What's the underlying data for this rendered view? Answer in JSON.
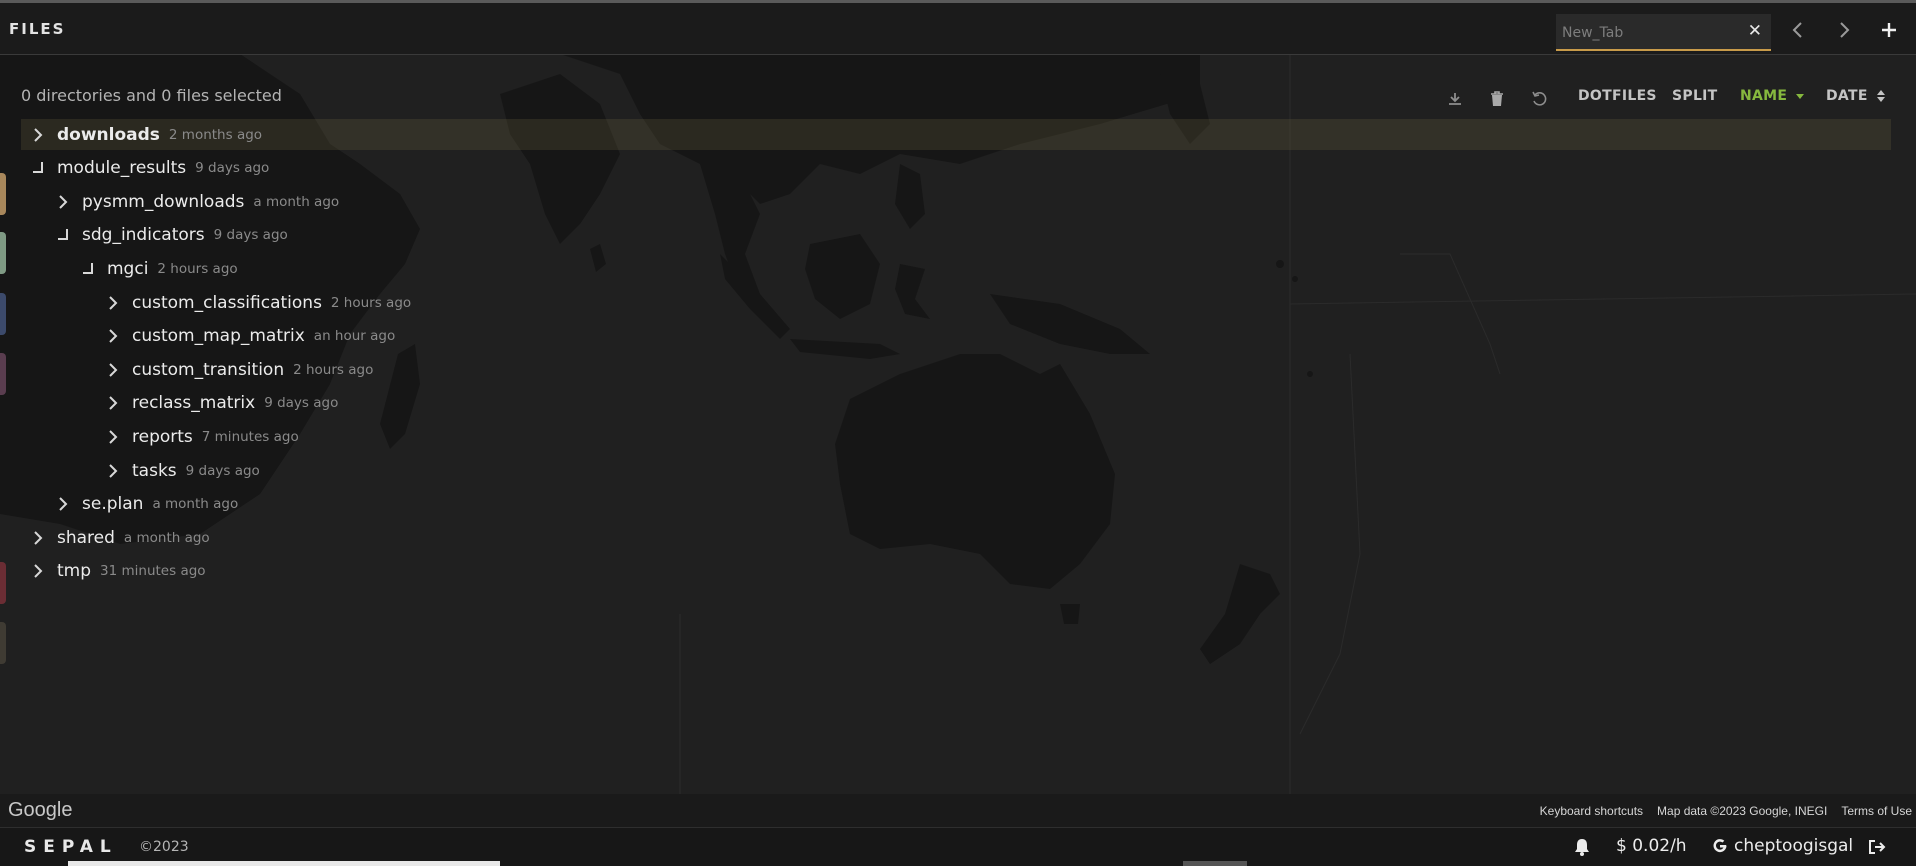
{
  "header": {
    "title": "FILES",
    "tab_label": "New_Tab",
    "close_glyph": "✕",
    "prev_icon": "chevron-left-icon",
    "next_icon": "chevron-right-icon",
    "add_icon": "plus-icon"
  },
  "panel": {
    "selection_status": "0 directories and 0 files selected",
    "toolbar": {
      "download_icon": "download-icon",
      "delete_icon": "trash-icon",
      "reload_icon": "reload-icon",
      "dotfiles": "DOTFILES",
      "split": "SPLIT",
      "name": "NAME",
      "date": "DATE",
      "active_color": "#86b83e"
    },
    "tree": [
      {
        "name": "downloads",
        "date": "2 months ago",
        "expanded": false,
        "highlighted": true
      },
      {
        "name": "module_results",
        "date": "9 days ago",
        "expanded": true
      },
      {
        "name": "pysmm_downloads",
        "date": "a month ago",
        "expanded": false
      },
      {
        "name": "sdg_indicators",
        "date": "9 days ago",
        "expanded": true
      },
      {
        "name": "mgci",
        "date": "2 hours ago",
        "expanded": true
      },
      {
        "name": "custom_classifications",
        "date": "2 hours ago",
        "expanded": false
      },
      {
        "name": "custom_map_matrix",
        "date": "an hour ago",
        "expanded": false
      },
      {
        "name": "custom_transition",
        "date": "2 hours ago",
        "expanded": false
      },
      {
        "name": "reclass_matrix",
        "date": "9 days ago",
        "expanded": false
      },
      {
        "name": "reports",
        "date": "7 minutes ago",
        "expanded": false
      },
      {
        "name": "tasks",
        "date": "9 days ago",
        "expanded": false
      },
      {
        "name": "se.plan",
        "date": "a month ago",
        "expanded": false
      },
      {
        "name": "shared",
        "date": "a month ago",
        "expanded": false
      },
      {
        "name": "tmp",
        "date": "31 minutes ago",
        "expanded": false
      }
    ]
  },
  "accent_colors": [
    "#a8875b",
    "#7f9a84",
    "#3c4a6b",
    "#5a3d4f",
    "#6b2d34",
    "#3f3b33"
  ],
  "map_footer": {
    "logo": "Google",
    "keyboard_shortcuts": "Keyboard shortcuts",
    "map_data": "Map data ©2023 Google, INEGI",
    "terms": "Terms of Use"
  },
  "status_bar": {
    "brand": "SEPAL",
    "copyright": "©2023",
    "notifications_icon": "bell-icon",
    "cost": "$ 0.02/h",
    "username": "cheptoogisgal",
    "logout_icon": "logout-icon"
  }
}
